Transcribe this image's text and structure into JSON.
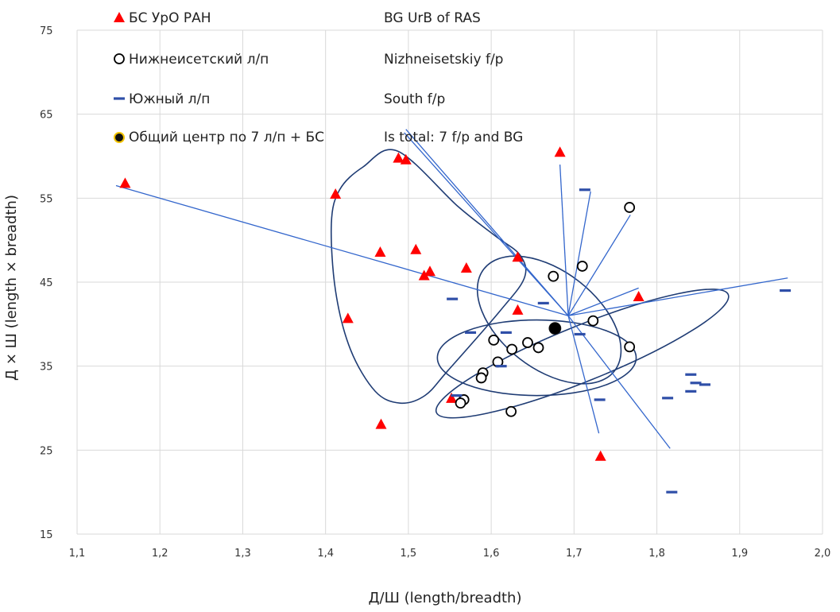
{
  "chart_data": {
    "type": "scatter",
    "xlabel": "Д/Ш (length/breadth)",
    "ylabel": "Д × Ш (length × breadth)",
    "xlim": [
      1.1,
      2.0
    ],
    "ylim": [
      15,
      75
    ],
    "x_ticks": [
      "1,1",
      "1,2",
      "1,3",
      "1,4",
      "1,5",
      "1,6",
      "1,7",
      "1,8",
      "1,9",
      "2,0"
    ],
    "y_ticks": [
      "15",
      "25",
      "35",
      "45",
      "55",
      "65",
      "75"
    ],
    "grid": true,
    "legend": {
      "placement": "top-left",
      "entries": [
        {
          "label_ru": "БС УрО РАН",
          "label_en": "BG UrB of RAS",
          "marker": "triangle",
          "color": "#ff0000"
        },
        {
          "label_ru": "Нижнеисетский л/п",
          "label_en": "Nizhneisetskiy f/p",
          "marker": "circle",
          "color": "#000000"
        },
        {
          "label_ru": "Южный  л/п",
          "label_en": "South f/p",
          "marker": "dash",
          "color": "#2f4fa8"
        },
        {
          "label_ru": "Общий центр по 7 л/п + БС",
          "label_en": "Is total: 7 f/p and BG",
          "marker": "dot",
          "color": "#000000"
        }
      ]
    },
    "series": [
      {
        "name": "БС УрО РАН",
        "marker": "triangle",
        "color": "#ff0000",
        "points": [
          [
            1.158,
            56.8
          ],
          [
            1.412,
            55.5
          ],
          [
            1.488,
            59.8
          ],
          [
            1.497,
            59.6
          ],
          [
            1.683,
            60.5
          ],
          [
            1.466,
            48.6
          ],
          [
            1.509,
            48.9
          ],
          [
            1.526,
            46.3
          ],
          [
            1.519,
            45.8
          ],
          [
            1.57,
            46.7
          ],
          [
            1.632,
            48.0
          ],
          [
            1.427,
            40.7
          ],
          [
            1.632,
            41.7
          ],
          [
            1.778,
            43.3
          ],
          [
            1.552,
            31.2
          ],
          [
            1.467,
            28.1
          ],
          [
            1.732,
            24.3
          ]
        ]
      },
      {
        "name": "Нижнеисетский л/п",
        "marker": "circle",
        "color": "#000000",
        "points": [
          [
            1.767,
            53.9
          ],
          [
            1.71,
            46.9
          ],
          [
            1.675,
            45.7
          ],
          [
            1.723,
            40.4
          ],
          [
            1.603,
            38.1
          ],
          [
            1.644,
            37.8
          ],
          [
            1.625,
            37.0
          ],
          [
            1.657,
            37.2
          ],
          [
            1.767,
            37.3
          ],
          [
            1.608,
            35.5
          ],
          [
            1.59,
            34.2
          ],
          [
            1.588,
            33.6
          ],
          [
            1.567,
            31.0
          ],
          [
            1.563,
            30.6
          ],
          [
            1.624,
            29.6
          ]
        ]
      },
      {
        "name": "Южный  л/п",
        "marker": "dash",
        "color": "#2f4fa8",
        "points": [
          [
            1.713,
            56.0
          ],
          [
            1.955,
            44.0
          ],
          [
            1.553,
            43.0
          ],
          [
            1.663,
            42.5
          ],
          [
            1.618,
            39.0
          ],
          [
            1.575,
            39.0
          ],
          [
            1.707,
            38.8
          ],
          [
            1.612,
            35.0
          ],
          [
            1.841,
            34.0
          ],
          [
            1.847,
            33.0
          ],
          [
            1.858,
            32.8
          ],
          [
            1.841,
            32.0
          ],
          [
            1.558,
            31.5
          ],
          [
            1.731,
            31.0
          ],
          [
            1.813,
            31.2
          ],
          [
            1.818,
            20.0
          ]
        ]
      },
      {
        "name": "Общий центр по 7 л/п + БС",
        "marker": "dot",
        "color": "#000000",
        "points": [
          [
            1.677,
            39.5
          ]
        ]
      }
    ],
    "center_rays": {
      "center": [
        1.693,
        41.0
      ],
      "ends": [
        [
          1.147,
          56.5
        ],
        [
          1.497,
          63.2
        ],
        [
          1.495,
          62.8
        ],
        [
          1.683,
          59.0
        ],
        [
          1.72,
          55.8
        ],
        [
          1.768,
          53.0
        ],
        [
          1.778,
          44.3
        ],
        [
          1.958,
          45.5
        ],
        [
          1.73,
          27.0
        ],
        [
          1.816,
          25.2
        ]
      ]
    },
    "ellipses": [
      {
        "cx": 1.655,
        "cy": 36.0,
        "rx": 0.12,
        "ry": 4.5,
        "angle": 0
      },
      {
        "cx": 1.71,
        "cy": 36.5,
        "rx": 0.19,
        "ry": 3.3,
        "angle": -22
      },
      {
        "cx": 1.67,
        "cy": 40.5,
        "rx": 0.1,
        "ry": 5.8,
        "angle": 38
      }
    ]
  }
}
